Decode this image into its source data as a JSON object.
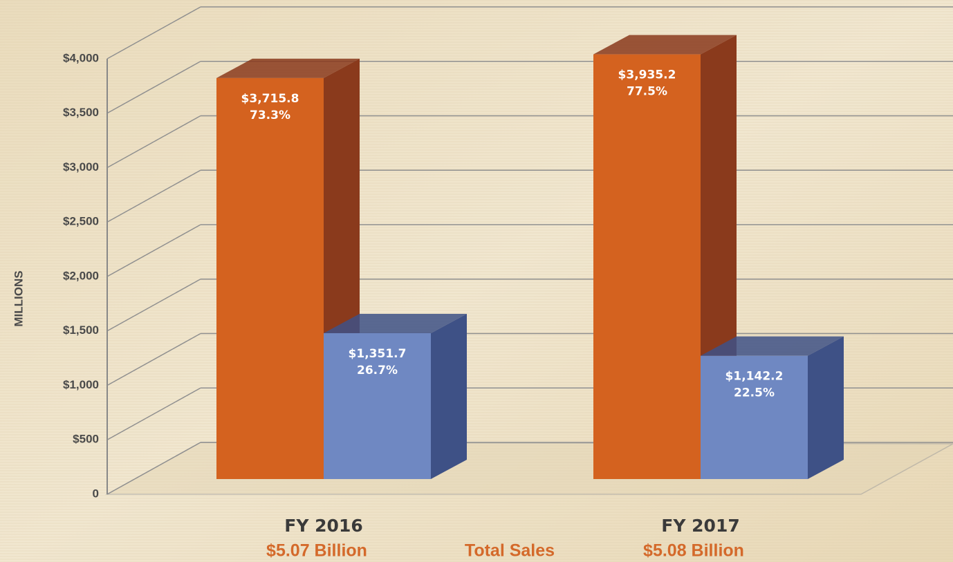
{
  "chart_data": {
    "type": "bar3d",
    "y_label": "MILLIONS",
    "categories": [
      "FY 2016",
      "FY 2017"
    ],
    "totals": [
      "$5.07 Billion",
      "$5.08 Billion"
    ],
    "total_label": "Total Sales",
    "series": [
      {
        "color": "#d4621f",
        "side_color": "#8a3a1c",
        "values": [
          3715.8,
          3935.2
        ],
        "value_labels": [
          "$3,715.8",
          "$3,935.2"
        ],
        "share_labels": [
          "73.3%",
          "77.5%"
        ]
      },
      {
        "color": "#6f88c2",
        "side_color": "#3e5186",
        "values": [
          1351.7,
          1142.2
        ],
        "value_labels": [
          "$1,351.7",
          "$1,142.2"
        ],
        "share_labels": [
          "26.7%",
          "22.5%"
        ]
      }
    ],
    "ylim": [
      0,
      4000
    ],
    "yticks": [
      0,
      {
        "value": 500,
        "label": "$500"
      },
      {
        "value": 1000,
        "label": "$1,000"
      },
      {
        "value": 1500,
        "label": "$1,500"
      },
      {
        "value": 2000,
        "label": "$2,000"
      },
      {
        "value": 2500,
        "label": "$2,500"
      },
      {
        "value": 3000,
        "label": "$3,000"
      },
      {
        "value": 3500,
        "label": "$3,500"
      },
      {
        "value": 4000,
        "label": "$4,000"
      }
    ],
    "grid": true
  }
}
